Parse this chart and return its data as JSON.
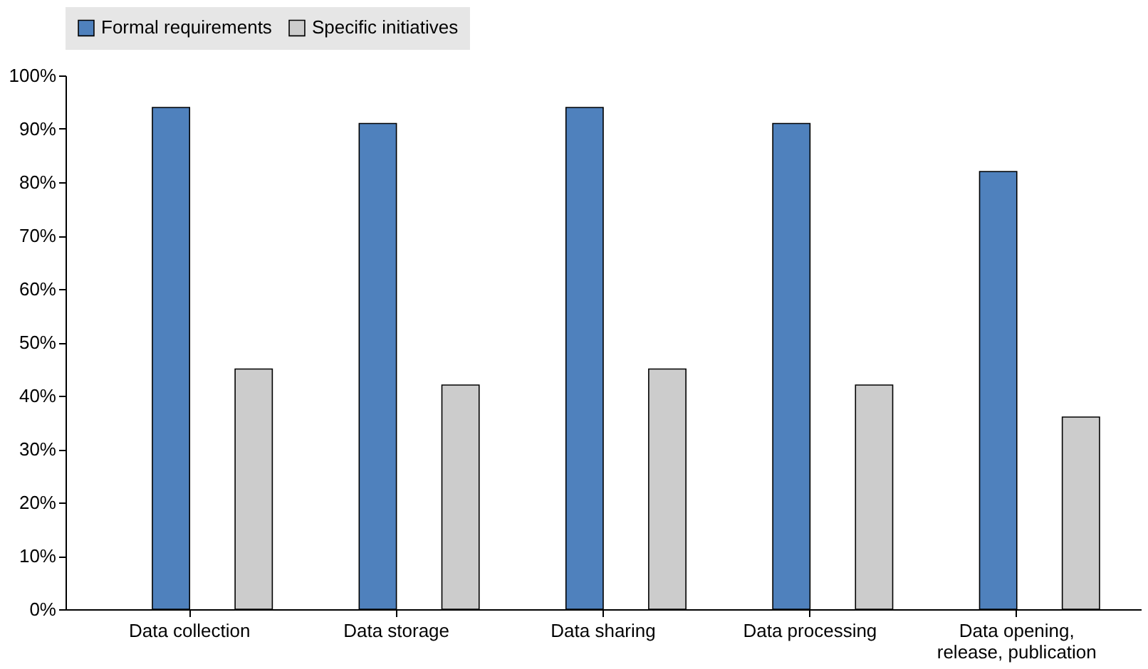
{
  "chart_data": {
    "type": "bar",
    "categories": [
      "Data collection",
      "Data storage",
      "Data sharing",
      "Data processing",
      "Data opening,\nrelease, publication"
    ],
    "series": [
      {
        "name": "Formal requirements",
        "color": "#4f81bd",
        "values": [
          94,
          91,
          94,
          91,
          82
        ]
      },
      {
        "name": "Specific initiatives",
        "color": "#cccccc",
        "values": [
          45,
          42,
          45,
          42,
          36
        ]
      }
    ],
    "ylim": [
      0,
      100
    ],
    "yticks": [
      {
        "value": 0,
        "label": "0%"
      },
      {
        "value": 10,
        "label": "10%"
      },
      {
        "value": 20,
        "label": "20%"
      },
      {
        "value": 30,
        "label": "30%"
      },
      {
        "value": 40,
        "label": "40%"
      },
      {
        "value": 50,
        "label": "50%"
      },
      {
        "value": 60,
        "label": "60%"
      },
      {
        "value": 70,
        "label": "70%"
      },
      {
        "value": 80,
        "label": "80%"
      },
      {
        "value": 90,
        "label": "90%"
      },
      {
        "value": 100,
        "label": "100%"
      }
    ],
    "grid": false,
    "legend": "top"
  }
}
